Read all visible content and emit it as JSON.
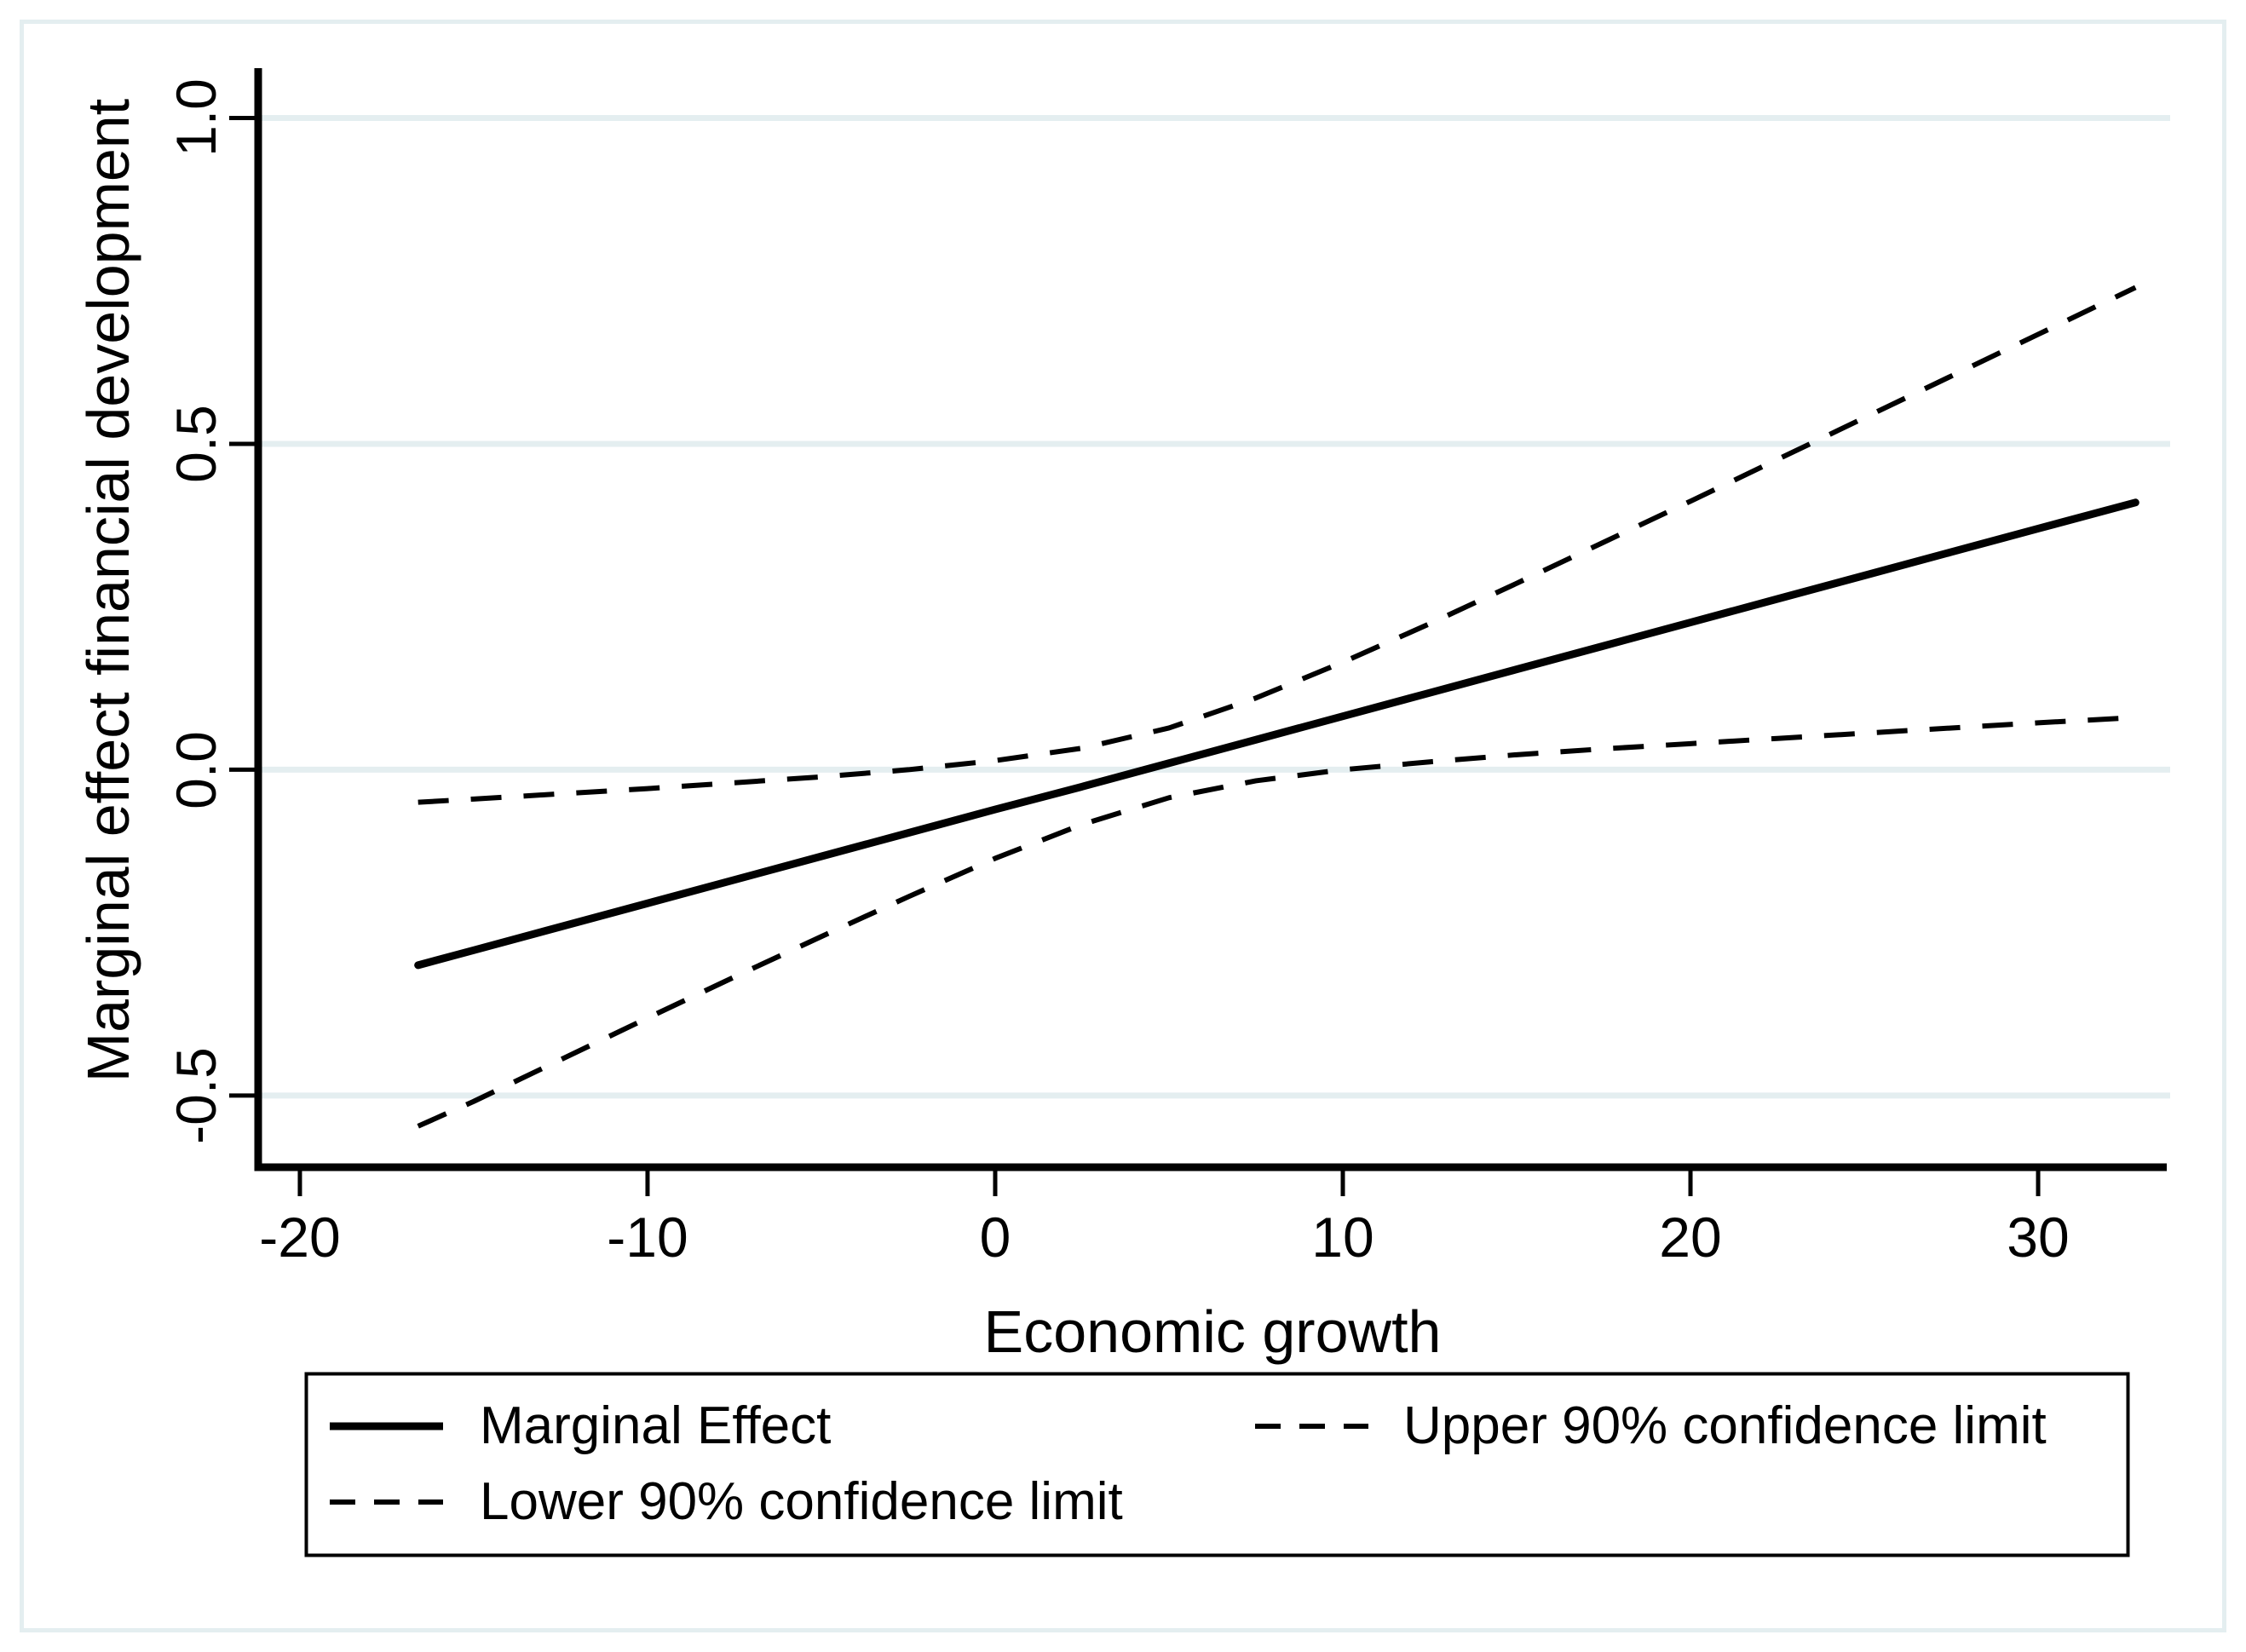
{
  "figure": {
    "background": "#ffffff",
    "border_color": "#e4eef0",
    "grid_color": "#e4eef0",
    "line_color": "#000000"
  },
  "chart_data": {
    "type": "line",
    "title": "",
    "xlabel": "Economic growth",
    "ylabel": "Marginal effect financial development",
    "xlim": [
      -21.2,
      33.7
    ],
    "ylim": [
      -0.61,
      1.07
    ],
    "x_ticks": [
      -20,
      -10,
      0,
      10,
      20,
      30
    ],
    "x_tick_labels": [
      "-20",
      "-10",
      "0",
      "10",
      "20",
      "30"
    ],
    "y_ticks": [
      1.0,
      0.5,
      0.0,
      -0.5
    ],
    "y_tick_labels": [
      "1.0",
      "0.5",
      "0.0",
      "-0.5"
    ],
    "grid": "horizontal",
    "legend_position": "bottom",
    "series": [
      {
        "name": "Marginal Effect",
        "style": "solid",
        "width": 9,
        "x": [
          -16.6,
          -15,
          -12.5,
          -10,
          -7.5,
          -5,
          -2.5,
          0,
          2.5,
          5,
          7.5,
          10,
          12.5,
          15,
          17.5,
          20,
          22.5,
          25,
          27.5,
          30,
          32.8
        ],
        "y": [
          -0.3,
          -0.277,
          -0.241,
          -0.205,
          -0.169,
          -0.133,
          -0.097,
          -0.061,
          -0.026,
          0.01,
          0.046,
          0.082,
          0.118,
          0.154,
          0.19,
          0.226,
          0.262,
          0.298,
          0.334,
          0.37,
          0.41
        ]
      },
      {
        "name": "Upper 90% confidence limit",
        "style": "dashed",
        "width": 6,
        "x": [
          -16.6,
          -15,
          -12.5,
          -10,
          -7.5,
          -5,
          -2.5,
          0,
          2.5,
          5,
          7.5,
          10,
          12.5,
          15,
          17.5,
          20,
          22.5,
          25,
          27.5,
          30,
          32.8
        ],
        "y": [
          -0.05,
          -0.045,
          -0.037,
          -0.029,
          -0.02,
          -0.011,
          0.0,
          0.014,
          0.033,
          0.064,
          0.11,
          0.165,
          0.224,
          0.286,
          0.349,
          0.412,
          0.476,
          0.54,
          0.604,
          0.668,
          0.74
        ]
      },
      {
        "name": "Lower 90% confidence limit",
        "style": "dashed",
        "width": 6,
        "x": [
          -16.6,
          -15,
          -12.5,
          -10,
          -7.5,
          -5,
          -2.5,
          0,
          2.5,
          5,
          7.5,
          10,
          12.5,
          15,
          17.5,
          20,
          22.5,
          25,
          27.5,
          30,
          32.8
        ],
        "y": [
          -0.547,
          -0.509,
          -0.445,
          -0.381,
          -0.318,
          -0.256,
          -0.195,
          -0.136,
          -0.084,
          -0.043,
          -0.017,
          0.0,
          0.012,
          0.023,
          0.032,
          0.04,
          0.048,
          0.056,
          0.064,
          0.072,
          0.08
        ]
      }
    ]
  },
  "legend": {
    "columns": 2,
    "items": [
      {
        "label": "Marginal Effect",
        "style": "solid"
      },
      {
        "label": "Upper 90% confidence limit",
        "style": "dashed"
      },
      {
        "label": "Lower 90% confidence limit",
        "style": "dashed"
      }
    ]
  }
}
